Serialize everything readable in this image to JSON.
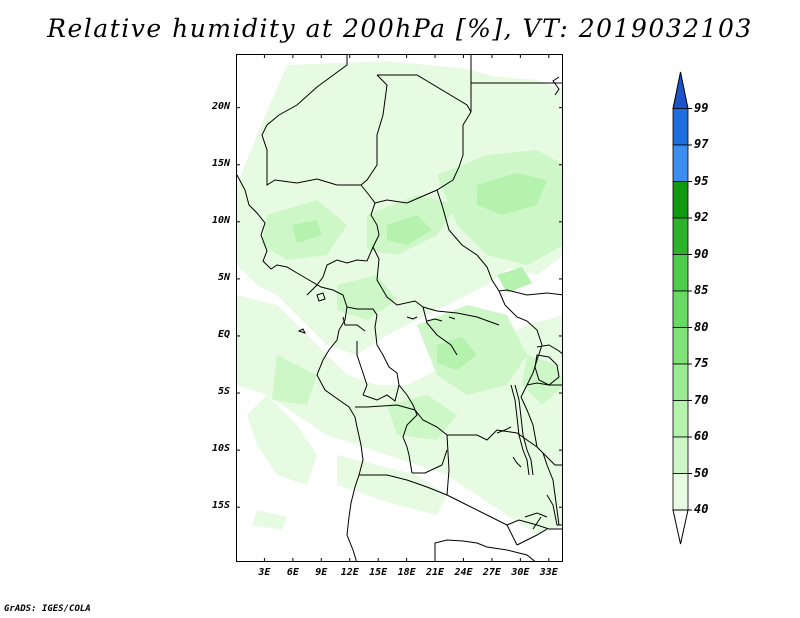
{
  "title": "Relative humidity at 200hPa [%], VT: 2019032103",
  "credit": "GrADS: IGES/COLA",
  "map": {
    "lat_labels": [
      {
        "text": "20N",
        "lat": 20
      },
      {
        "text": "15N",
        "lat": 15
      },
      {
        "text": "10N",
        "lat": 10
      },
      {
        "text": "5N",
        "lat": 5
      },
      {
        "text": "EQ",
        "lat": 0
      },
      {
        "text": "5S",
        "lat": -5
      },
      {
        "text": "10S",
        "lat": -10
      },
      {
        "text": "15S",
        "lat": -15
      }
    ],
    "lon_labels": [
      {
        "text": "3E",
        "lon": 3
      },
      {
        "text": "6E",
        "lon": 6
      },
      {
        "text": "9E",
        "lon": 9
      },
      {
        "text": "12E",
        "lon": 12
      },
      {
        "text": "15E",
        "lon": 15
      },
      {
        "text": "18E",
        "lon": 18
      },
      {
        "text": "21E",
        "lon": 21
      },
      {
        "text": "24E",
        "lon": 24
      },
      {
        "text": "27E",
        "lon": 27
      },
      {
        "text": "30E",
        "lon": 30
      },
      {
        "text": "33E",
        "lon": 33
      }
    ],
    "lon_range": [
      0,
      34.5
    ],
    "lat_range": [
      -19.8,
      24.7
    ]
  },
  "colorbar": {
    "levels": [
      "40",
      "50",
      "60",
      "70",
      "75",
      "80",
      "85",
      "90",
      "92",
      "95",
      "97",
      "99"
    ],
    "colors": [
      "#ffffff",
      "#e6fbe2",
      "#cdf7c7",
      "#b4f2ad",
      "#9ceb93",
      "#82e27a",
      "#68d964",
      "#4ecb4c",
      "#2db32b",
      "#109a10",
      "#3b8ef0",
      "#1f6ee0",
      "#1a55c8"
    ]
  },
  "fill_colors": {
    "light": "#e6fbe2",
    "mid": "#cdf7c7",
    "dark": "#b4f2ad"
  }
}
